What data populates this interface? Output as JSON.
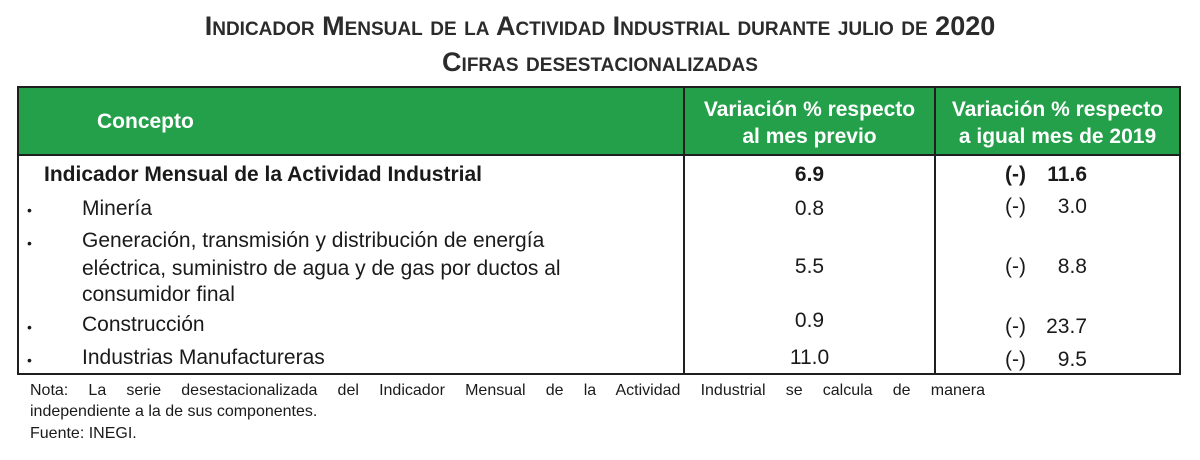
{
  "title": {
    "line1": "Indicador Mensual de la Actividad Industrial durante julio de 2020",
    "line2": "Cifras desestacionalizadas"
  },
  "table": {
    "headers": {
      "concepto": "Concepto",
      "col1_line1": "Variación % respecto",
      "col1_line2": "al mes previo",
      "col2_line1": "Variación % respecto",
      "col2_line2": "a igual mes de 2019"
    },
    "bullet": "•",
    "rows": [
      {
        "label": "Indicador Mensual de la Actividad Industrial",
        "mensual": "6.9",
        "neg": "(-)",
        "anual": "11.6"
      },
      {
        "label": "Minería",
        "mensual": "0.8",
        "neg": "(-)",
        "anual": "3.0"
      },
      {
        "label_lines": [
          "Generación, transmisión y distribución de energía",
          "eléctrica, suministro de agua y de gas por ductos al",
          "consumidor final"
        ],
        "mensual": "5.5",
        "neg": "(-)",
        "anual": "8.8"
      },
      {
        "label": "Construcción",
        "mensual": "0.9",
        "neg": "(-)",
        "anual": "23.7"
      },
      {
        "label": "Industrias Manufactureras",
        "mensual": "11.0",
        "neg": "(-)",
        "anual": "9.5"
      }
    ]
  },
  "notes": {
    "line1": "Nota: La serie desestacionalizada del Indicador Mensual de la Actividad Industrial se calcula de manera",
    "line2": "independiente a la de sus componentes.",
    "line3": "Fuente: INEGI."
  },
  "colors": {
    "header_bg": "#24a04b",
    "header_text": "#ffffff",
    "border": "#1f1f1f"
  }
}
